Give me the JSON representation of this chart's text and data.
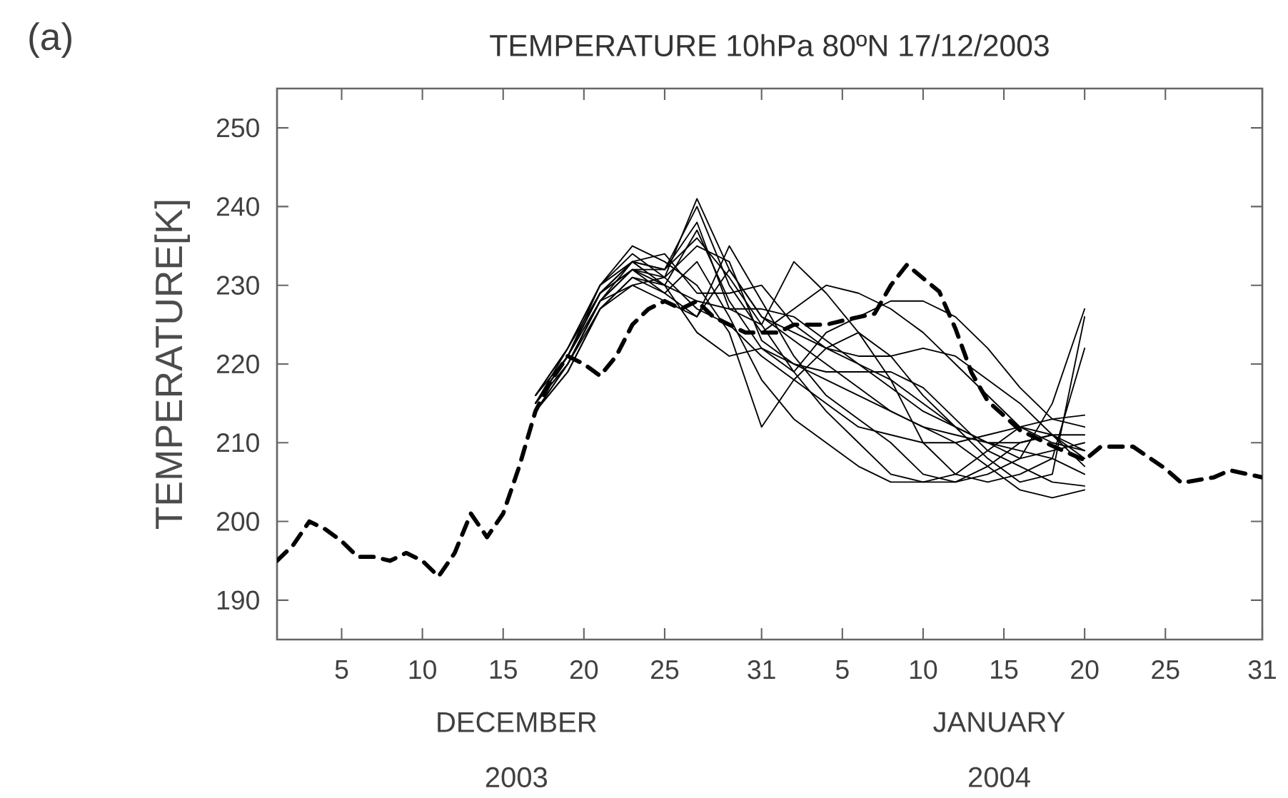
{
  "chart_data": {
    "type": "line",
    "title": "TEMPERATURE   10hPa 80ºN    17/12/2003",
    "ylabel": "TEMPERATURE[K]",
    "annotations": [
      "(a)",
      "DECEMBER 2003",
      "JANUARY 2004"
    ],
    "xlim": [
      "2003-12-01",
      "2004-01-31"
    ],
    "ylim": [
      185,
      255
    ],
    "xticks": [
      {
        "value": "2003-12-05",
        "label": "5"
      },
      {
        "value": "2003-12-10",
        "label": "10"
      },
      {
        "value": "2003-12-15",
        "label": "15"
      },
      {
        "value": "2003-12-20",
        "label": "20"
      },
      {
        "value": "2003-12-25",
        "label": "25"
      },
      {
        "value": "2003-12-31",
        "label": "31"
      },
      {
        "value": "2004-01-05",
        "label": "5"
      },
      {
        "value": "2004-01-10",
        "label": "10"
      },
      {
        "value": "2004-01-15",
        "label": "15"
      },
      {
        "value": "2004-01-20",
        "label": "20"
      },
      {
        "value": "2004-01-25",
        "label": "25"
      },
      {
        "value": "2004-01-31",
        "label": "31"
      }
    ],
    "yticks": [
      190,
      200,
      210,
      220,
      230,
      240,
      250
    ],
    "grid": false,
    "marker": "none",
    "series": [
      {
        "color": "#000000",
        "line_style": "dashed",
        "x": [
          "2003-12-01",
          "2003-12-02",
          "2003-12-03",
          "2003-12-04",
          "2003-12-05",
          "2003-12-06",
          "2003-12-07",
          "2003-12-08",
          "2003-12-09",
          "2003-12-10",
          "2003-12-11",
          "2003-12-12",
          "2003-12-13",
          "2003-12-14",
          "2003-12-15",
          "2003-12-16",
          "2003-12-17",
          "2003-12-18",
          "2003-12-19",
          "2003-12-20",
          "2003-12-21",
          "2003-12-22",
          "2003-12-23",
          "2003-12-24",
          "2003-12-25",
          "2003-12-26",
          "2003-12-27",
          "2003-12-28",
          "2003-12-29",
          "2003-12-30",
          "2003-12-31",
          "2004-01-01",
          "2004-01-02",
          "2004-01-03",
          "2004-01-04",
          "2004-01-05",
          "2004-01-07",
          "2004-01-08",
          "2004-01-09",
          "2004-01-11",
          "2004-01-12",
          "2004-01-13",
          "2004-01-14",
          "2004-01-16",
          "2004-01-18",
          "2004-01-20",
          "2004-01-21",
          "2004-01-23",
          "2004-01-25",
          "2004-01-26",
          "2004-01-28",
          "2004-01-29",
          "2004-01-31"
        ],
        "values": [
          195,
          197,
          200,
          199,
          197.5,
          195.5,
          195.5,
          195,
          196,
          195,
          193,
          196,
          201,
          198,
          201,
          207,
          214,
          218,
          221,
          220,
          218.5,
          221,
          225,
          227,
          228,
          227,
          228,
          226,
          225,
          224,
          224,
          224,
          225,
          225,
          225,
          225.5,
          226.4,
          230,
          232.6,
          229.2,
          224.5,
          218.9,
          215.3,
          211.6,
          209.6,
          207.8,
          209.5,
          209.5,
          206.7,
          204.9,
          205.6,
          206.5,
          205.6
        ]
      },
      {
        "color": "#000000",
        "line_style": "solid",
        "x": [
          "2003-12-17",
          "2003-12-19",
          "2003-12-21",
          "2003-12-23",
          "2003-12-25",
          "2003-12-27",
          "2003-12-29",
          "2003-12-31",
          "2004-01-02",
          "2004-01-04",
          "2004-01-06",
          "2004-01-08",
          "2004-01-10",
          "2004-01-12",
          "2004-01-14",
          "2004-01-16",
          "2004-01-18",
          "2004-01-20"
        ],
        "values": [
          215,
          221,
          229,
          232,
          231,
          241,
          232,
          226,
          224,
          222,
          220,
          218,
          215,
          212,
          210,
          208,
          209,
          210
        ]
      },
      {
        "color": "#000000",
        "line_style": "solid",
        "x": [
          "2003-12-17",
          "2003-12-19",
          "2003-12-21",
          "2003-12-23",
          "2003-12-25",
          "2003-12-27",
          "2003-12-29",
          "2003-12-31",
          "2004-01-02",
          "2004-01-04",
          "2004-01-06",
          "2004-01-08",
          "2004-01-10",
          "2004-01-12",
          "2004-01-14",
          "2004-01-16",
          "2004-01-18",
          "2004-01-20"
        ],
        "values": [
          215,
          220,
          228,
          233,
          230,
          237,
          228,
          222,
          219,
          224,
          226,
          228,
          228,
          226,
          222,
          217,
          213,
          213.5
        ]
      },
      {
        "color": "#000000",
        "line_style": "solid",
        "x": [
          "2003-12-17",
          "2003-12-19",
          "2003-12-21",
          "2003-12-23",
          "2003-12-25",
          "2003-12-27",
          "2003-12-29",
          "2003-12-31",
          "2004-01-02",
          "2004-01-04",
          "2004-01-06",
          "2004-01-08",
          "2004-01-10",
          "2004-01-12",
          "2004-01-14",
          "2004-01-16",
          "2004-01-18",
          "2004-01-20"
        ],
        "values": [
          214,
          219,
          227,
          231,
          229,
          226,
          235,
          228,
          221,
          216,
          213,
          210,
          206,
          205,
          206,
          208,
          215,
          227
        ]
      },
      {
        "color": "#000000",
        "line_style": "solid",
        "x": [
          "2003-12-17",
          "2003-12-19",
          "2003-12-21",
          "2003-12-23",
          "2003-12-25",
          "2003-12-27",
          "2003-12-29",
          "2003-12-31",
          "2004-01-02",
          "2004-01-04",
          "2004-01-06",
          "2004-01-08",
          "2004-01-10",
          "2004-01-12",
          "2004-01-14",
          "2004-01-16",
          "2004-01-18",
          "2004-01-20"
        ],
        "values": [
          216,
          222,
          230,
          235,
          233,
          230,
          224,
          212,
          218,
          222,
          224,
          221,
          216,
          212,
          208,
          205,
          206,
          226
        ]
      },
      {
        "color": "#000000",
        "line_style": "solid",
        "x": [
          "2003-12-17",
          "2003-12-19",
          "2003-12-21",
          "2003-12-23",
          "2003-12-25",
          "2003-12-27",
          "2003-12-29",
          "2003-12-31",
          "2004-01-02",
          "2004-01-04",
          "2004-01-06",
          "2004-01-08",
          "2004-01-10",
          "2004-01-12",
          "2004-01-14",
          "2004-01-16",
          "2004-01-18",
          "2004-01-20"
        ],
        "values": [
          215,
          221,
          228,
          232,
          232,
          240,
          230,
          224,
          227,
          230,
          229,
          227,
          224,
          220,
          216,
          212,
          210,
          209
        ]
      },
      {
        "color": "#000000",
        "line_style": "solid",
        "x": [
          "2003-12-17",
          "2003-12-19",
          "2003-12-21",
          "2003-12-23",
          "2003-12-25",
          "2003-12-27",
          "2003-12-29",
          "2003-12-31",
          "2004-01-02",
          "2004-01-04",
          "2004-01-06",
          "2004-01-08",
          "2004-01-10",
          "2004-01-12",
          "2004-01-14",
          "2004-01-16",
          "2004-01-18",
          "2004-01-20"
        ],
        "values": [
          214,
          220,
          228,
          230,
          228,
          226,
          232,
          226,
          223,
          220,
          217,
          214,
          212,
          210,
          207,
          204,
          203,
          204
        ]
      },
      {
        "color": "#000000",
        "line_style": "solid",
        "x": [
          "2003-12-17",
          "2003-12-19",
          "2003-12-21",
          "2003-12-23",
          "2003-12-25",
          "2003-12-27",
          "2003-12-29",
          "2003-12-31",
          "2004-01-02",
          "2004-01-04",
          "2004-01-06",
          "2004-01-08",
          "2004-01-10",
          "2004-01-12",
          "2004-01-14",
          "2004-01-16",
          "2004-01-18",
          "2004-01-20"
        ],
        "values": [
          215,
          221,
          229,
          233,
          232,
          238,
          227,
          225,
          233,
          229,
          224,
          218,
          210,
          206,
          205,
          206,
          208,
          222
        ]
      },
      {
        "color": "#000000",
        "line_style": "solid",
        "x": [
          "2003-12-17",
          "2003-12-19",
          "2003-12-21",
          "2003-12-23",
          "2003-12-25",
          "2003-12-27",
          "2003-12-29",
          "2003-12-31",
          "2004-01-02",
          "2004-01-04",
          "2004-01-06",
          "2004-01-08",
          "2004-01-10",
          "2004-01-12",
          "2004-01-14",
          "2004-01-16",
          "2004-01-18",
          "2004-01-20"
        ],
        "values": [
          216,
          221,
          230,
          234,
          231,
          227,
          225,
          221,
          218,
          215,
          212,
          211,
          210,
          210,
          211,
          212,
          213,
          212
        ]
      },
      {
        "color": "#000000",
        "line_style": "solid",
        "x": [
          "2003-12-17",
          "2003-12-19",
          "2003-12-21",
          "2003-12-23",
          "2003-12-25",
          "2003-12-27",
          "2003-12-29",
          "2003-12-31",
          "2004-01-02",
          "2004-01-04",
          "2004-01-06",
          "2004-01-08",
          "2004-01-10",
          "2004-01-12",
          "2004-01-14",
          "2004-01-16",
          "2004-01-18",
          "2004-01-20"
        ],
        "values": [
          214,
          220,
          227,
          231,
          230,
          224,
          221,
          222,
          220,
          219,
          219,
          219,
          217,
          213,
          209,
          207,
          205,
          204.5
        ]
      },
      {
        "color": "#000000",
        "line_style": "solid",
        "x": [
          "2003-12-17",
          "2003-12-19",
          "2003-12-21",
          "2003-12-23",
          "2003-12-25",
          "2003-12-27",
          "2003-12-29",
          "2003-12-31",
          "2004-01-02",
          "2004-01-04",
          "2004-01-06",
          "2004-01-08",
          "2004-01-10",
          "2004-01-12",
          "2004-01-14",
          "2004-01-16",
          "2004-01-18",
          "2004-01-20"
        ],
        "values": [
          215,
          221,
          229,
          232,
          229,
          233,
          226,
          218,
          213,
          210,
          207,
          205,
          205,
          206,
          209,
          212,
          211,
          208
        ]
      },
      {
        "color": "#000000",
        "line_style": "solid",
        "x": [
          "2003-12-17",
          "2003-12-19",
          "2003-12-21",
          "2003-12-23",
          "2003-12-25",
          "2003-12-27",
          "2003-12-29",
          "2003-12-31",
          "2004-01-02",
          "2004-01-04",
          "2004-01-06",
          "2004-01-08",
          "2004-01-10",
          "2004-01-12",
          "2004-01-14",
          "2004-01-16",
          "2004-01-18",
          "2004-01-20"
        ],
        "values": [
          215,
          222,
          230,
          233,
          234,
          229,
          229,
          230,
          225,
          222,
          221,
          221,
          222,
          221,
          218,
          215,
          211,
          207
        ]
      },
      {
        "color": "#000000",
        "line_style": "solid",
        "x": [
          "2003-12-17",
          "2003-12-19",
          "2003-12-21",
          "2003-12-23",
          "2003-12-25",
          "2003-12-27",
          "2003-12-29",
          "2003-12-31",
          "2004-01-02",
          "2004-01-04",
          "2004-01-06",
          "2004-01-08",
          "2004-01-10",
          "2004-01-12",
          "2004-01-14",
          "2004-01-16",
          "2004-01-18",
          "2004-01-20"
        ],
        "values": [
          214,
          219,
          227,
          230,
          231,
          235,
          233,
          223,
          220,
          218,
          216,
          214,
          212,
          211,
          210,
          210,
          211,
          211
        ]
      },
      {
        "color": "#000000",
        "line_style": "solid",
        "x": [
          "2003-12-17",
          "2003-12-19",
          "2003-12-21",
          "2003-12-23",
          "2003-12-25",
          "2003-12-27",
          "2003-12-29",
          "2003-12-31",
          "2004-01-02",
          "2004-01-04",
          "2004-01-06",
          "2004-01-08",
          "2004-01-10",
          "2004-01-12",
          "2004-01-14",
          "2004-01-16",
          "2004-01-18",
          "2004-01-20"
        ],
        "values": [
          215,
          220,
          228,
          232,
          230,
          228,
          227,
          227,
          226,
          223,
          220,
          217,
          214,
          212,
          210,
          209,
          208,
          206
        ]
      },
      {
        "color": "#000000",
        "line_style": "solid",
        "x": [
          "2003-12-17",
          "2003-12-19",
          "2003-12-21",
          "2003-12-23",
          "2003-12-25",
          "2003-12-27",
          "2003-12-29",
          "2003-12-31",
          "2004-01-02",
          "2004-01-04",
          "2004-01-06",
          "2004-01-08",
          "2004-01-10",
          "2004-01-12",
          "2004-01-14",
          "2004-01-16",
          "2004-01-18",
          "2004-01-20"
        ],
        "values": [
          216,
          222,
          229,
          233,
          232,
          236,
          231,
          225,
          219,
          214,
          210,
          206,
          205,
          205,
          207,
          210,
          211,
          209
        ]
      }
    ]
  }
}
